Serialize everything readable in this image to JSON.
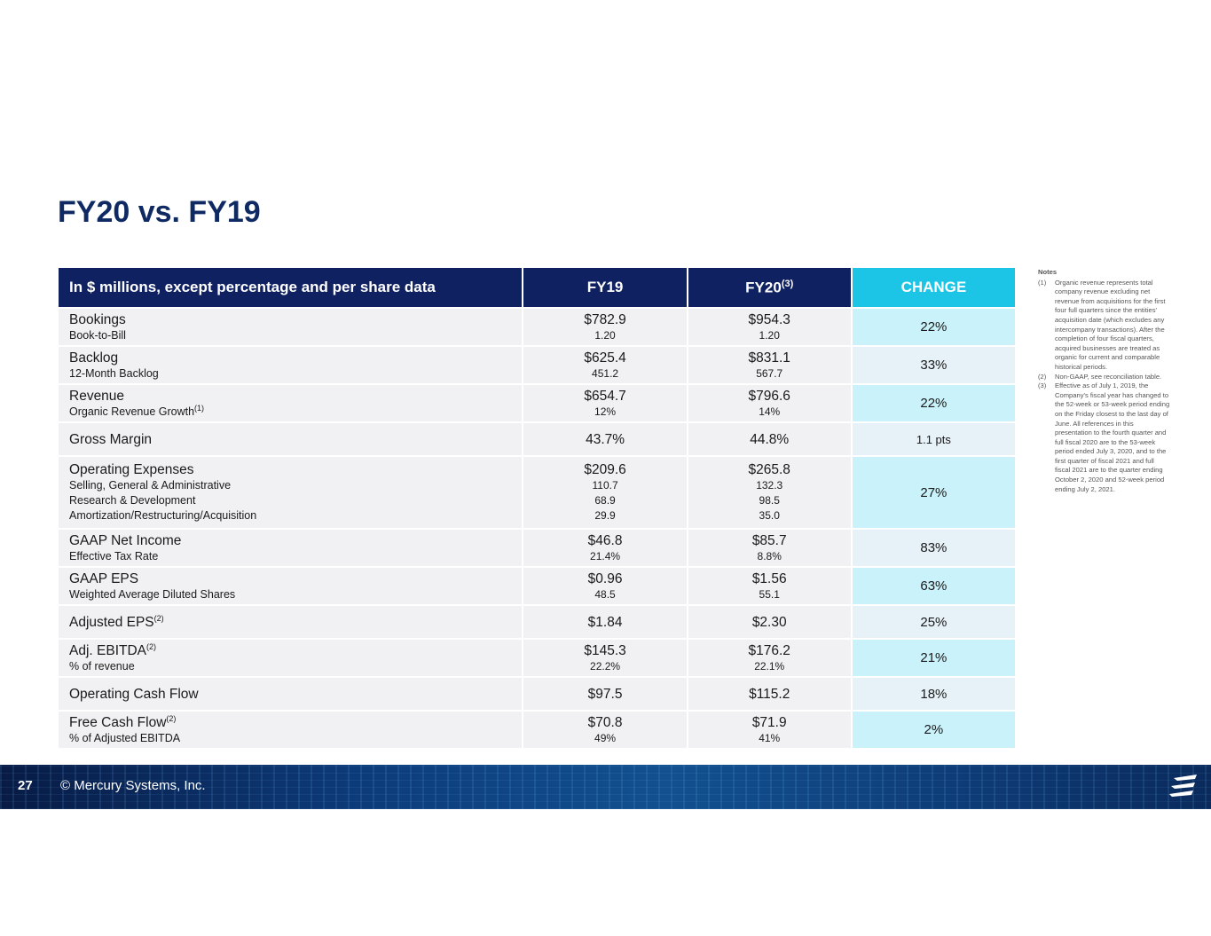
{
  "title": "FY20 vs. FY19",
  "header": {
    "label": "In $ millions, except percentage and per share data",
    "fy19": "FY19",
    "fy20": "FY20",
    "fy20_note": "(3)",
    "change": "CHANGE"
  },
  "rows": [
    {
      "main": "Bookings",
      "main_note": "",
      "subs": [
        {
          "label": "Book-to-Bill",
          "note": ""
        }
      ],
      "fy19": "$782.9",
      "fy19_subs": [
        "1.20"
      ],
      "fy20": "$954.3",
      "fy20_subs": [
        "1.20"
      ],
      "change": "22%"
    },
    {
      "main": "Backlog",
      "main_note": "",
      "subs": [
        {
          "label": "12-Month Backlog",
          "note": ""
        }
      ],
      "fy19": "$625.4",
      "fy19_subs": [
        "451.2"
      ],
      "fy20": "$831.1",
      "fy20_subs": [
        "567.7"
      ],
      "change": "33%"
    },
    {
      "main": "Revenue",
      "main_note": "",
      "subs": [
        {
          "label": "Organic Revenue Growth",
          "note": "(1)"
        }
      ],
      "fy19": "$654.7",
      "fy19_subs": [
        "12%"
      ],
      "fy20": "$796.6",
      "fy20_subs": [
        "14%"
      ],
      "change": "22%"
    },
    {
      "main": "Gross Margin",
      "main_note": "",
      "subs": [],
      "fy19": "43.7%",
      "fy19_subs": [],
      "fy20": "44.8%",
      "fy20_subs": [],
      "change": "1.1 pts"
    },
    {
      "main": "Operating Expenses",
      "main_note": "",
      "subs": [
        {
          "label": "Selling, General & Administrative",
          "note": ""
        },
        {
          "label": "Research & Development",
          "note": ""
        },
        {
          "label": "Amortization/Restructuring/Acquisition",
          "note": ""
        }
      ],
      "fy19": "$209.6",
      "fy19_subs": [
        "110.7",
        "68.9",
        "29.9"
      ],
      "fy20": "$265.8",
      "fy20_subs": [
        "132.3",
        "98.5",
        "35.0"
      ],
      "change": "27%"
    },
    {
      "main": "GAAP Net Income",
      "main_note": "",
      "subs": [
        {
          "label": "Effective Tax Rate",
          "note": ""
        }
      ],
      "fy19": "$46.8",
      "fy19_subs": [
        "21.4%"
      ],
      "fy20": "$85.7",
      "fy20_subs": [
        "8.8%"
      ],
      "change": "83%"
    },
    {
      "main": "GAAP EPS",
      "main_note": "",
      "subs": [
        {
          "label": "Weighted Average Diluted Shares",
          "note": ""
        }
      ],
      "fy19": "$0.96",
      "fy19_subs": [
        "48.5"
      ],
      "fy20": "$1.56",
      "fy20_subs": [
        "55.1"
      ],
      "change": "63%"
    },
    {
      "main": "Adjusted EPS",
      "main_note": "(2)",
      "subs": [],
      "fy19": "$1.84",
      "fy19_subs": [],
      "fy20": "$2.30",
      "fy20_subs": [],
      "change": "25%"
    },
    {
      "main": "Adj. EBITDA",
      "main_note": "(2)",
      "subs": [
        {
          "label": "% of revenue",
          "note": ""
        }
      ],
      "fy19": "$145.3",
      "fy19_subs": [
        "22.2%"
      ],
      "fy20": "$176.2",
      "fy20_subs": [
        "22.1%"
      ],
      "change": "21%"
    },
    {
      "main": "Operating Cash Flow",
      "main_note": "",
      "subs": [],
      "fy19": "$97.5",
      "fy19_subs": [],
      "fy20": "$115.2",
      "fy20_subs": [],
      "change": "18%"
    },
    {
      "main": "Free Cash Flow",
      "main_note": "(2)",
      "subs": [
        {
          "label": "% of Adjusted EBITDA",
          "note": ""
        }
      ],
      "fy19": "$70.8",
      "fy19_subs": [
        "49%"
      ],
      "fy20": "$71.9",
      "fy20_subs": [
        "41%"
      ],
      "change": "2%"
    }
  ],
  "notes": {
    "heading": "Notes",
    "items": [
      {
        "num": "(1)",
        "text": "Organic revenue represents total company revenue excluding net revenue from acquisitions for the first four full quarters since the entities' acquisition date (which excludes any intercompany transactions). After the completion of four fiscal quarters, acquired businesses are treated as organic for current and comparable historical periods."
      },
      {
        "num": "(2)",
        "text": "Non-GAAP, see reconciliation table."
      },
      {
        "num": "(3)",
        "text": "Effective as of July 1, 2019, the Company's fiscal year has changed to the 52-week or 53-week period ending on the Friday closest to the last day of June. All references in this presentation to the fourth quarter and full fiscal 2020 are to the 53-week period ended July 3, 2020, and to the first quarter of fiscal 2021 and full fiscal 2021 are to the quarter ending October 2, 2020 and 52-week period ending July 2, 2021."
      }
    ]
  },
  "footer": {
    "page": "27",
    "copyright": "© Mercury Systems, Inc.",
    "logo_icon": "mercury-logo-icon"
  }
}
